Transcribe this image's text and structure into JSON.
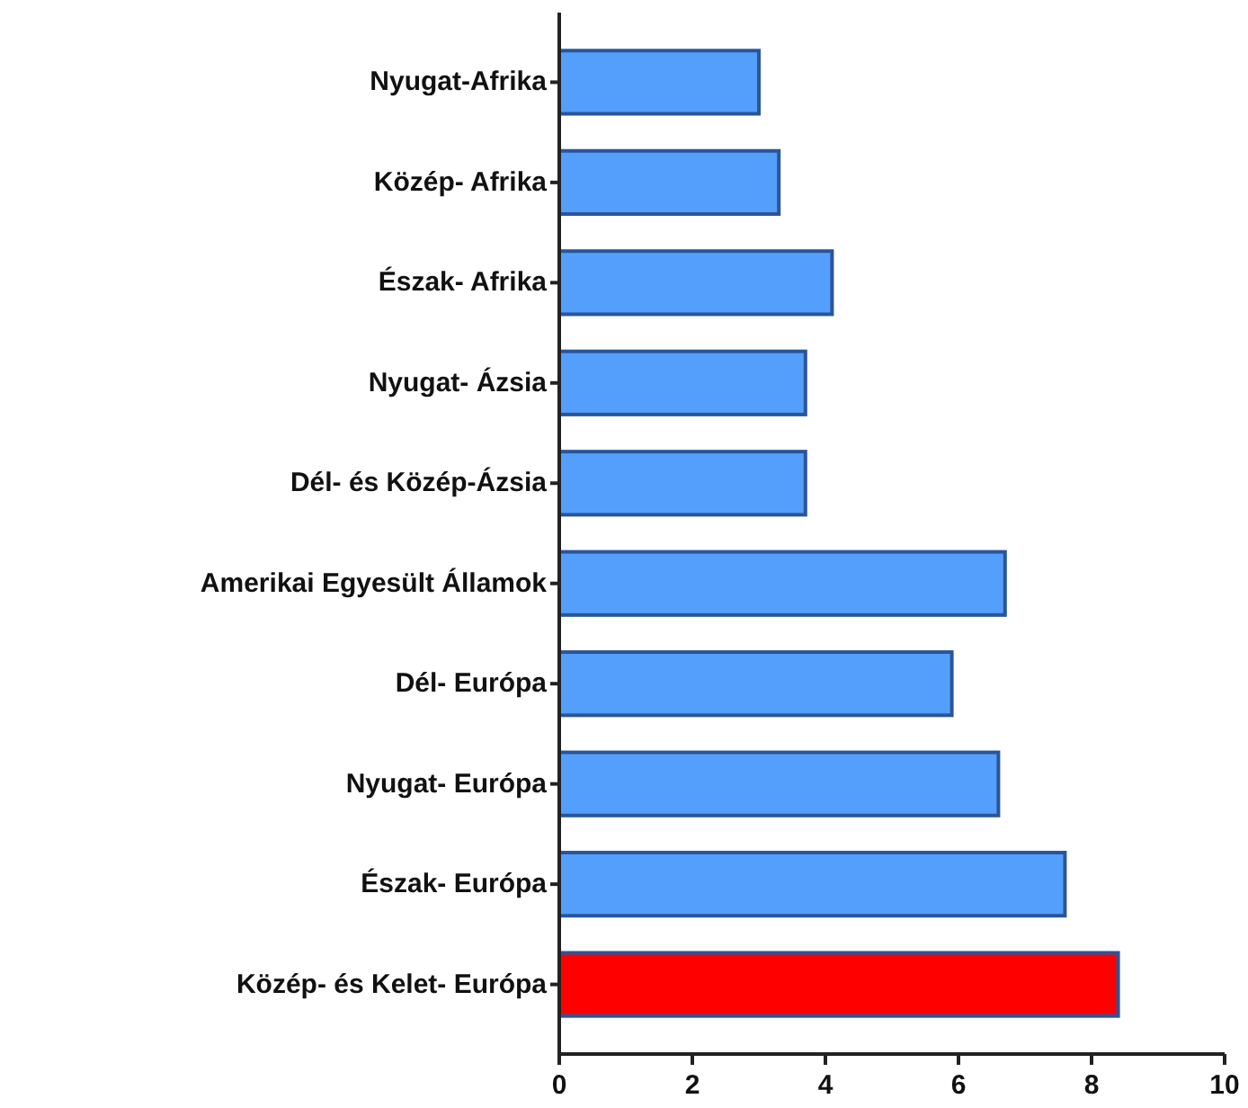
{
  "chart_data": {
    "type": "bar",
    "orientation": "horizontal",
    "categories": [
      "Nyugat-Afrika",
      "Közép- Afrika",
      "Észak- Afrika",
      "Nyugat- Ázsia",
      "Dél- és Közép-Ázsia",
      "Amerikai Egyesült Államok",
      "Dél- Európa",
      "Nyugat- Európa",
      "Észak- Európa",
      "Közép- és Kelet- Európa"
    ],
    "values": [
      3.0,
      3.3,
      4.1,
      3.7,
      3.7,
      6.7,
      5.9,
      6.6,
      7.6,
      8.4
    ],
    "colors": [
      "#559ffc",
      "#559ffc",
      "#559ffc",
      "#559ffc",
      "#559ffc",
      "#559ffc",
      "#559ffc",
      "#559ffc",
      "#559ffc",
      "#ff0000"
    ],
    "xlim": [
      0,
      10
    ],
    "xticks": [
      0,
      2,
      4,
      6,
      8,
      10
    ],
    "grid": false
  }
}
